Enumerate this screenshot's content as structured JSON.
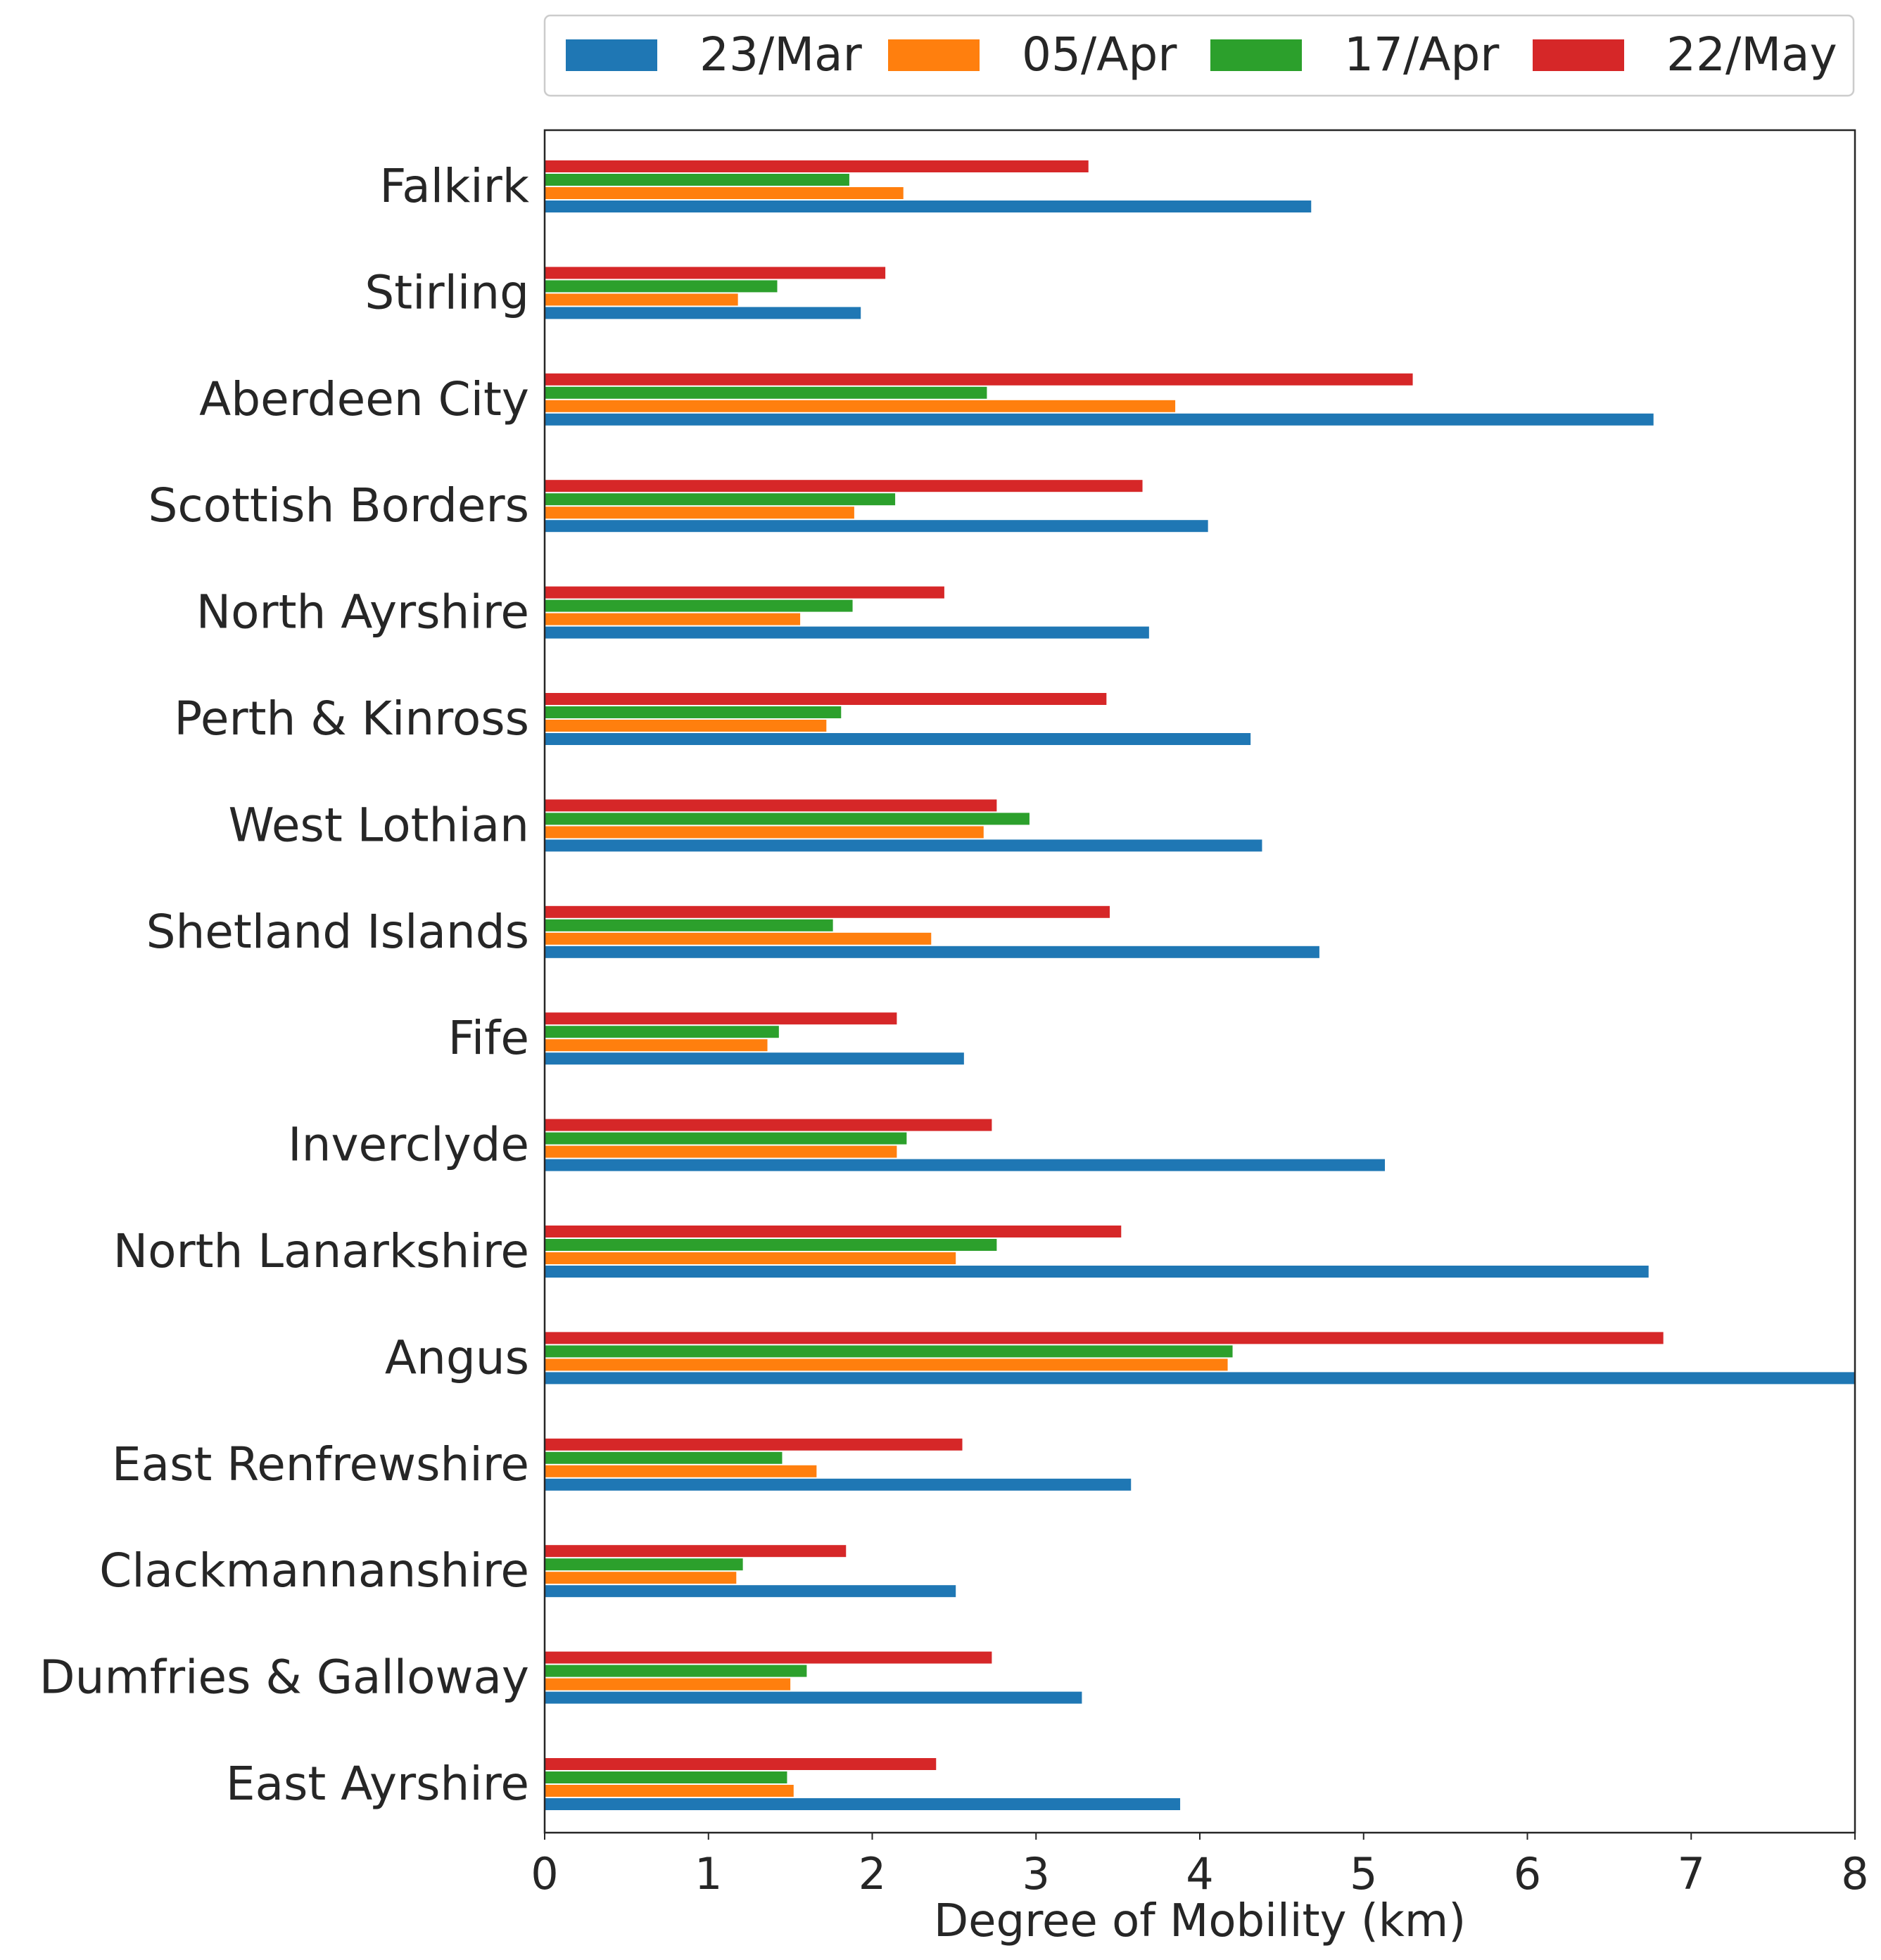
{
  "chart_data": {
    "type": "bar",
    "orientation": "horizontal",
    "xlabel": "Degree of Mobility (km)",
    "xlim": [
      0,
      8
    ],
    "xticks": [
      0,
      1,
      2,
      3,
      4,
      5,
      6,
      7,
      8
    ],
    "grid": false,
    "legend_position": "top-right",
    "categories": [
      "Falkirk",
      "Stirling",
      "Aberdeen City",
      "Scottish Borders",
      "North Ayrshire",
      "Perth & Kinross",
      "West Lothian",
      "Shetland Islands",
      "Fife",
      "Inverclyde",
      "North Lanarkshire",
      "Angus",
      "East Renfrewshire",
      "Clackmannanshire",
      "Dumfries & Galloway",
      "East Ayrshire"
    ],
    "series": [
      {
        "name": "23/Mar",
        "color": "#1f77b4",
        "values": [
          4.68,
          1.93,
          6.77,
          4.05,
          3.69,
          4.31,
          4.38,
          4.73,
          2.56,
          5.13,
          6.74,
          8.0,
          3.58,
          2.51,
          3.28,
          3.88
        ]
      },
      {
        "name": "05/Apr",
        "color": "#ff7f0e",
        "values": [
          2.19,
          1.18,
          3.85,
          1.89,
          1.56,
          1.72,
          2.68,
          2.36,
          1.36,
          2.15,
          2.51,
          4.17,
          1.66,
          1.17,
          1.5,
          1.52
        ]
      },
      {
        "name": "17/Apr",
        "color": "#2ca02c",
        "values": [
          1.86,
          1.42,
          2.7,
          2.14,
          1.88,
          1.81,
          2.96,
          1.76,
          1.43,
          2.21,
          2.76,
          4.2,
          1.45,
          1.21,
          1.6,
          1.48
        ]
      },
      {
        "name": "22/May",
        "color": "#d62728",
        "values": [
          3.32,
          2.08,
          5.3,
          3.65,
          2.44,
          3.43,
          2.76,
          3.45,
          2.15,
          2.73,
          3.52,
          6.83,
          2.55,
          1.84,
          2.73,
          2.39
        ]
      }
    ]
  }
}
